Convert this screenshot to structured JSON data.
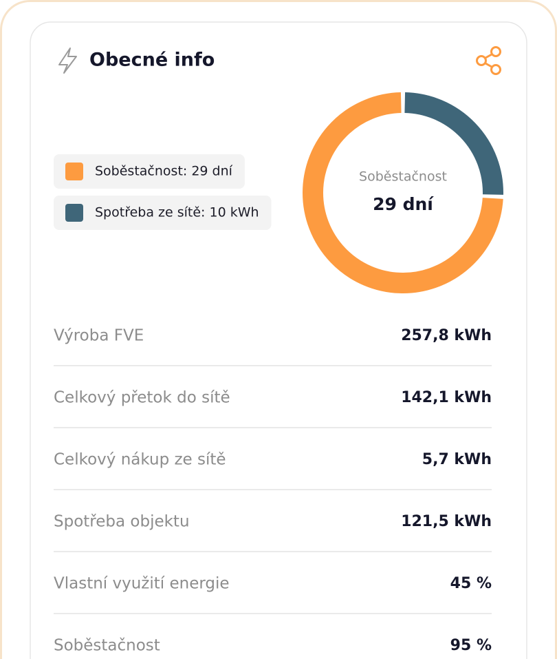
{
  "header": {
    "title": "Obecné info"
  },
  "chart_data": {
    "type": "donut",
    "categories": [
      "Soběstačnost: 29 dní",
      "Spotřeba ze sítě: 10 kWh"
    ],
    "values": [
      29,
      10
    ],
    "colors": [
      "#fd9b40",
      "#3f6679"
    ],
    "center_label": "Soběstačnost",
    "center_value": "29 dní"
  },
  "table": {
    "rows": [
      [
        "Výroba FVE",
        "257,8 kWh"
      ],
      [
        "Celkový přetok do sítě",
        "142,1 kWh"
      ],
      [
        "Celkový nákup ze sítě",
        "5,7 kWh"
      ],
      [
        "Spotřeba objektu",
        "121,5 kWh"
      ],
      [
        "Vlastní využití energie",
        "45 %"
      ],
      [
        "Soběstačnost",
        "95 %"
      ]
    ]
  }
}
